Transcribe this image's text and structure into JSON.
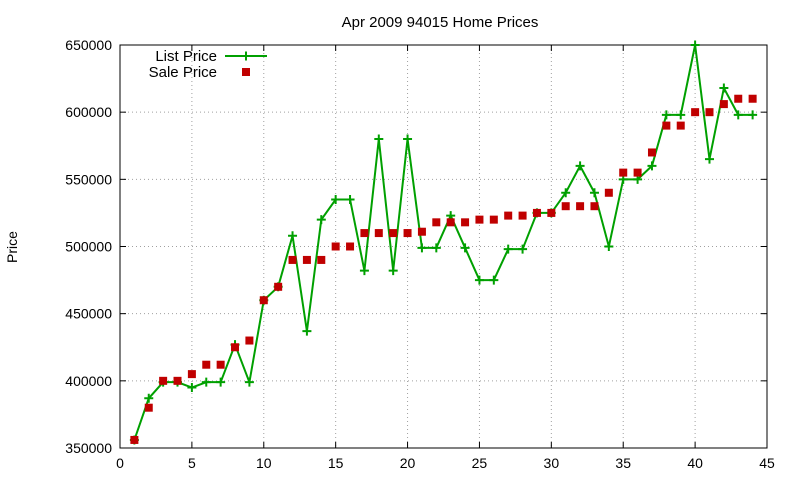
{
  "chart_data": {
    "type": "line",
    "title": "Apr 2009 94015 Home Prices",
    "xlabel": "",
    "ylabel": "Price",
    "xlim": [
      0,
      45
    ],
    "ylim": [
      350000,
      650000
    ],
    "xticks": [
      0,
      5,
      10,
      15,
      20,
      25,
      30,
      35,
      40,
      45
    ],
    "yticks": [
      350000,
      400000,
      450000,
      500000,
      550000,
      600000,
      650000
    ],
    "grid": true,
    "legend_position": "top-left",
    "x": [
      1,
      2,
      3,
      4,
      5,
      6,
      7,
      8,
      9,
      10,
      11,
      12,
      13,
      14,
      15,
      16,
      17,
      18,
      19,
      20,
      21,
      22,
      23,
      24,
      25,
      26,
      27,
      28,
      29,
      30,
      31,
      32,
      33,
      34,
      35,
      36,
      37,
      38,
      39,
      40,
      41,
      42,
      43,
      44
    ],
    "series": [
      {
        "name": "List Price",
        "color": "#00a000",
        "style": "line-with-plus-markers",
        "values": [
          356000,
          387000,
          399000,
          399000,
          395000,
          399000,
          399000,
          427000,
          399000,
          460000,
          470000,
          508000,
          437000,
          520000,
          535000,
          535000,
          482000,
          580000,
          482000,
          580000,
          499000,
          499000,
          523000,
          499000,
          475000,
          475000,
          498000,
          498000,
          525000,
          525000,
          540000,
          560000,
          540000,
          500000,
          550000,
          550000,
          560000,
          598000,
          598000,
          650000,
          565000,
          618000,
          598000,
          598000
        ]
      },
      {
        "name": "Sale Price",
        "color": "#c00000",
        "style": "square-markers",
        "values": [
          356000,
          380000,
          400000,
          400000,
          405000,
          412000,
          412000,
          425000,
          430000,
          460000,
          470000,
          490000,
          490000,
          490000,
          500000,
          500000,
          510000,
          510000,
          510000,
          510000,
          511000,
          518000,
          518000,
          518000,
          520000,
          520000,
          523000,
          523000,
          525000,
          525000,
          530000,
          530000,
          530000,
          540000,
          555000,
          555000,
          570000,
          590000,
          590000,
          600000,
          600000,
          606000,
          610000,
          610000
        ]
      }
    ]
  }
}
